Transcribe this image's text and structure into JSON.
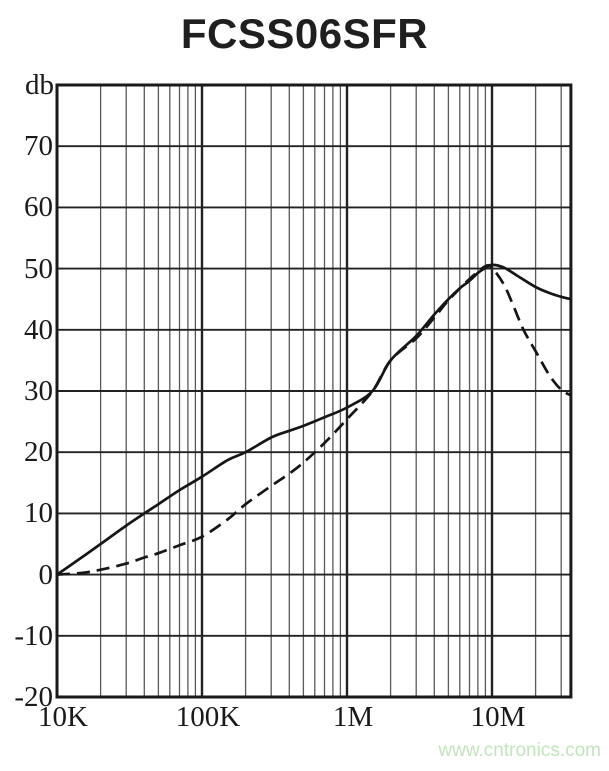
{
  "watermark": {
    "text": "www.cntronics.com",
    "color": "#c2e5bd"
  },
  "chart_data": {
    "type": "line",
    "title": "FCSS06SFR",
    "x_axis": {
      "scale": "log",
      "min": 10000,
      "max": 35000000,
      "tick_values": [
        10000,
        100000,
        1000000,
        10000000
      ],
      "tick_labels": [
        "10K",
        "100K",
        "1M",
        "10M"
      ]
    },
    "y_axis": {
      "label": "db",
      "min": -20,
      "max": 80,
      "tick_values": [
        70,
        60,
        50,
        40,
        30,
        20,
        10,
        0,
        -10,
        -20
      ],
      "tick_labels": [
        "70",
        "60",
        "50",
        "40",
        "30",
        "20",
        "10",
        "0",
        "-10",
        "-20"
      ]
    },
    "grid": true,
    "legend": "none",
    "colors": {
      "line": "#161616",
      "grid_major": "#222222",
      "grid_minor": "#595959",
      "border": "#1a1a1a"
    },
    "series": [
      {
        "name": "solid",
        "style": "solid",
        "points": [
          [
            10000,
            0
          ],
          [
            15000,
            2.9
          ],
          [
            20000,
            5
          ],
          [
            30000,
            8
          ],
          [
            40000,
            10
          ],
          [
            50000,
            11.5
          ],
          [
            70000,
            13.8
          ],
          [
            100000,
            16
          ],
          [
            150000,
            18.7
          ],
          [
            200000,
            20
          ],
          [
            300000,
            22.4
          ],
          [
            400000,
            23.5
          ],
          [
            500000,
            24.3
          ],
          [
            700000,
            25.7
          ],
          [
            1000000,
            27.3
          ],
          [
            1500000,
            30
          ],
          [
            2000000,
            35
          ],
          [
            3000000,
            39
          ],
          [
            4000000,
            42.5
          ],
          [
            5000000,
            45
          ],
          [
            6000000,
            46.8
          ],
          [
            7000000,
            48
          ],
          [
            8000000,
            49.3
          ],
          [
            9000000,
            50.1
          ],
          [
            10000000,
            50.6
          ],
          [
            12000000,
            50.2
          ],
          [
            15000000,
            48.8
          ],
          [
            20000000,
            47
          ],
          [
            25000000,
            46
          ],
          [
            30000000,
            45.4
          ],
          [
            35000000,
            45
          ]
        ]
      },
      {
        "name": "dashed",
        "style": "dashed",
        "points": [
          [
            10000,
            0
          ],
          [
            15000,
            0.3
          ],
          [
            20000,
            0.8
          ],
          [
            30000,
            1.8
          ],
          [
            40000,
            2.8
          ],
          [
            50000,
            3.5
          ],
          [
            70000,
            4.8
          ],
          [
            100000,
            6.2
          ],
          [
            150000,
            9
          ],
          [
            200000,
            11.5
          ],
          [
            300000,
            14.5
          ],
          [
            400000,
            16.5
          ],
          [
            500000,
            18.3
          ],
          [
            700000,
            21.5
          ],
          [
            1000000,
            25.4
          ],
          [
            1500000,
            30
          ],
          [
            2000000,
            35
          ],
          [
            3000000,
            38.6
          ],
          [
            4000000,
            42
          ],
          [
            5000000,
            44.8
          ],
          [
            7000000,
            48.3
          ],
          [
            9000000,
            50.4
          ],
          [
            10000000,
            50.1
          ],
          [
            12000000,
            47.5
          ],
          [
            14000000,
            44
          ],
          [
            16500000,
            40
          ],
          [
            20000000,
            36.5
          ],
          [
            25000000,
            32.5
          ],
          [
            30000000,
            30.2
          ],
          [
            35000000,
            29.3
          ]
        ]
      }
    ]
  }
}
